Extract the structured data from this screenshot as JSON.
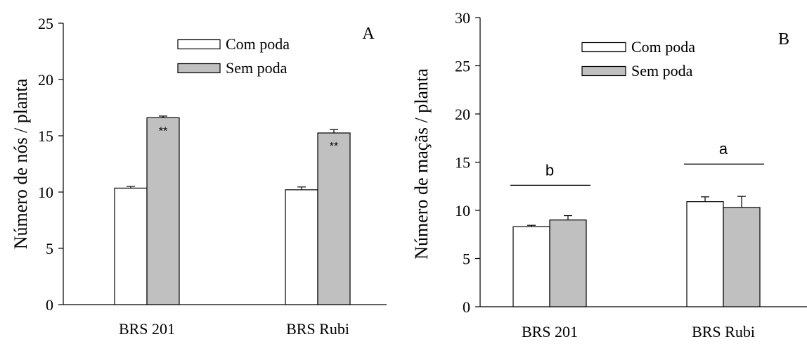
{
  "colors": {
    "com_poda": "#ffffff",
    "sem_poda": "#c0c0c0",
    "stroke": "#000000"
  },
  "chart_data": [
    {
      "type": "bar",
      "panel_label": "A",
      "ylabel": "Número de nós / planta",
      "ylim": [
        0,
        25
      ],
      "yticks": [
        0,
        5,
        10,
        15,
        20,
        25
      ],
      "categories": [
        "BRS 201",
        "BRS Rubi"
      ],
      "legend": [
        "Com poda",
        "Sem poda"
      ],
      "series": [
        {
          "name": "Com poda",
          "values": [
            10.35,
            10.2
          ],
          "errors": [
            0.15,
            0.25
          ],
          "labels": [
            "",
            ""
          ]
        },
        {
          "name": "Sem poda",
          "values": [
            16.6,
            15.25
          ],
          "errors": [
            0.15,
            0.3
          ],
          "labels": [
            "**",
            "**"
          ]
        }
      ],
      "group_labels": []
    },
    {
      "type": "bar",
      "panel_label": "B",
      "ylabel": "Número de maçãs / planta",
      "ylim": [
        0,
        30
      ],
      "yticks": [
        0,
        5,
        10,
        15,
        20,
        25,
        30
      ],
      "categories": [
        "BRS 201",
        "BRS Rubi"
      ],
      "legend": [
        "Com poda",
        "Sem poda"
      ],
      "series": [
        {
          "name": "Com poda",
          "values": [
            8.3,
            10.9
          ],
          "errors": [
            0.15,
            0.5
          ],
          "labels": [
            "",
            ""
          ]
        },
        {
          "name": "Sem poda",
          "values": [
            9.0,
            10.3
          ],
          "errors": [
            0.45,
            1.15
          ],
          "labels": [
            "",
            ""
          ]
        }
      ],
      "group_labels": [
        {
          "text": "b",
          "level": 12.6
        },
        {
          "text": "a",
          "level": 14.8
        }
      ]
    }
  ]
}
